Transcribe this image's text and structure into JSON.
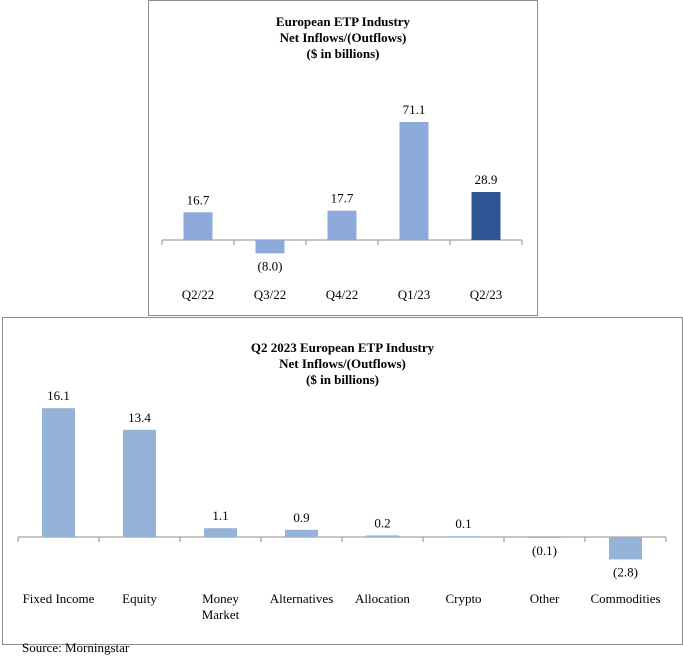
{
  "chart_data": [
    {
      "type": "bar",
      "title": [
        "European ETP Industry",
        "Net Inflows/(Outflows)",
        "($ in billions)"
      ],
      "categories": [
        "Q2/22",
        "Q3/22",
        "Q4/22",
        "Q1/23",
        "Q2/23"
      ],
      "values": [
        16.7,
        -8.0,
        17.7,
        71.1,
        28.9
      ],
      "labels": [
        "16.7",
        "(8.0)",
        "17.7",
        "71.1",
        "28.9"
      ],
      "colors": [
        "#8eaadb",
        "#8eaadb",
        "#8eaadb",
        "#8eaadb",
        "#2f5597"
      ],
      "xlabel": "",
      "ylabel": "",
      "grid": false
    },
    {
      "type": "bar",
      "title": [
        "Q2 2023 European ETP Industry",
        "Net Inflows/(Outflows)",
        "($ in billions)"
      ],
      "categories": [
        [
          "Fixed Income"
        ],
        [
          "Equity"
        ],
        [
          "Money",
          "Market"
        ],
        [
          "Alternatives"
        ],
        [
          "Allocation"
        ],
        [
          "Crypto"
        ],
        [
          "Other"
        ],
        [
          "Commodities"
        ]
      ],
      "values": [
        16.1,
        13.4,
        1.1,
        0.9,
        0.2,
        0.1,
        -0.1,
        -2.8
      ],
      "labels": [
        "16.1",
        "13.4",
        "1.1",
        "0.9",
        "0.2",
        "0.1",
        "(0.1)",
        "(2.8)"
      ],
      "colors": [
        "#95b3d7"
      ],
      "xlabel": "",
      "ylabel": "",
      "grid": false
    }
  ],
  "source": "Source: Morningstar"
}
